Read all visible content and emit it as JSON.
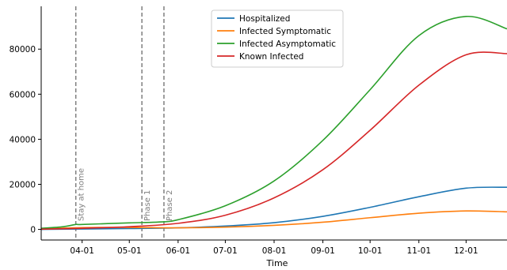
{
  "chart_data": {
    "type": "line",
    "xlabel": "Time",
    "ylabel": "",
    "x_tick_labels": [
      "04-01",
      "05-01",
      "06-01",
      "07-01",
      "08-01",
      "09-01",
      "10-01",
      "11-01",
      "12-01"
    ],
    "x_ticks": [
      "2020-04-01",
      "2020-05-01",
      "2020-06-01",
      "2020-07-01",
      "2020-08-01",
      "2020-09-01",
      "2020-10-01",
      "2020-11-01",
      "2020-12-01"
    ],
    "xlim": [
      "2020-03-06",
      "2020-12-27"
    ],
    "y_ticks": [
      0,
      20000,
      40000,
      60000,
      80000
    ],
    "y_tick_labels": [
      "0",
      "20000",
      "40000",
      "60000",
      "80000"
    ],
    "ylim": [
      -4700,
      99000
    ],
    "grid": false,
    "legend_position": "top-center",
    "series": [
      {
        "name": "Hospitalized",
        "color": "#1f77b4",
        "x": [
          "2020-03-06",
          "2020-04-01",
          "2020-05-01",
          "2020-06-01",
          "2020-07-01",
          "2020-08-01",
          "2020-09-01",
          "2020-10-01",
          "2020-11-01",
          "2020-12-01",
          "2020-12-27"
        ],
        "y": [
          0,
          200,
          400,
          700,
          1500,
          3000,
          5800,
          9800,
          14500,
          18300,
          18700
        ]
      },
      {
        "name": "Infected Symptomatic",
        "color": "#ff7f0e",
        "x": [
          "2020-03-06",
          "2020-04-01",
          "2020-05-01",
          "2020-06-01",
          "2020-07-01",
          "2020-08-01",
          "2020-09-01",
          "2020-10-01",
          "2020-11-01",
          "2020-12-01",
          "2020-12-27"
        ],
        "y": [
          200,
          800,
          900,
          700,
          1000,
          1800,
          3200,
          5200,
          7200,
          8200,
          7800
        ]
      },
      {
        "name": "Infected Asymptomatic",
        "color": "#2ca02c",
        "x": [
          "2020-03-06",
          "2020-03-20",
          "2020-03-28",
          "2020-04-01",
          "2020-05-01",
          "2020-05-20",
          "2020-06-01",
          "2020-07-01",
          "2020-08-01",
          "2020-09-01",
          "2020-10-01",
          "2020-11-01",
          "2020-12-01",
          "2020-12-27"
        ],
        "y": [
          500,
          1200,
          2200,
          2200,
          2900,
          3300,
          4300,
          10500,
          21500,
          39500,
          62000,
          86000,
          94500,
          89000
        ]
      },
      {
        "name": "Known Infected",
        "color": "#d62728",
        "x": [
          "2020-03-06",
          "2020-04-01",
          "2020-05-01",
          "2020-06-01",
          "2020-07-01",
          "2020-08-01",
          "2020-09-01",
          "2020-10-01",
          "2020-11-01",
          "2020-12-01",
          "2020-12-27"
        ],
        "y": [
          100,
          500,
          1200,
          2700,
          6300,
          14000,
          26500,
          44000,
          64000,
          77500,
          78000
        ]
      }
    ],
    "annotations": [
      {
        "label": "Stay at home",
        "x": "2020-03-28",
        "style": "dashed",
        "color": "#7f7f7f"
      },
      {
        "label": "Phase 1",
        "x": "2020-05-09",
        "style": "dashed",
        "color": "#7f7f7f"
      },
      {
        "label": "Phase 2",
        "x": "2020-05-23",
        "style": "dashed",
        "color": "#7f7f7f"
      }
    ]
  }
}
